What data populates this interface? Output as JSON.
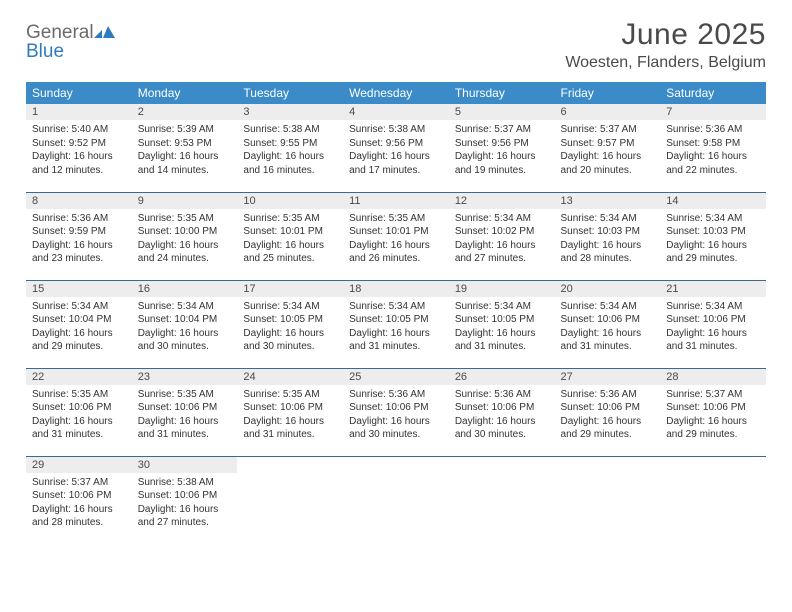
{
  "brand": {
    "general": "General",
    "blue": "Blue"
  },
  "title": "June 2025",
  "location": "Woesten, Flanders, Belgium",
  "colors": {
    "header_bg": "#3b8bc8",
    "header_text": "#ffffff",
    "daynum_bg": "#ededed",
    "cell_border": "#3b6a8f",
    "title_text": "#4a4a4a",
    "body_text": "#333333",
    "logo_gray": "#6b6b6b",
    "logo_blue": "#2f7bbf"
  },
  "weekdays": [
    "Sunday",
    "Monday",
    "Tuesday",
    "Wednesday",
    "Thursday",
    "Friday",
    "Saturday"
  ],
  "days": [
    {
      "n": "1",
      "sunrise": "5:40 AM",
      "sunset": "9:52 PM",
      "daylight": "16 hours and 12 minutes."
    },
    {
      "n": "2",
      "sunrise": "5:39 AM",
      "sunset": "9:53 PM",
      "daylight": "16 hours and 14 minutes."
    },
    {
      "n": "3",
      "sunrise": "5:38 AM",
      "sunset": "9:55 PM",
      "daylight": "16 hours and 16 minutes."
    },
    {
      "n": "4",
      "sunrise": "5:38 AM",
      "sunset": "9:56 PM",
      "daylight": "16 hours and 17 minutes."
    },
    {
      "n": "5",
      "sunrise": "5:37 AM",
      "sunset": "9:56 PM",
      "daylight": "16 hours and 19 minutes."
    },
    {
      "n": "6",
      "sunrise": "5:37 AM",
      "sunset": "9:57 PM",
      "daylight": "16 hours and 20 minutes."
    },
    {
      "n": "7",
      "sunrise": "5:36 AM",
      "sunset": "9:58 PM",
      "daylight": "16 hours and 22 minutes."
    },
    {
      "n": "8",
      "sunrise": "5:36 AM",
      "sunset": "9:59 PM",
      "daylight": "16 hours and 23 minutes."
    },
    {
      "n": "9",
      "sunrise": "5:35 AM",
      "sunset": "10:00 PM",
      "daylight": "16 hours and 24 minutes."
    },
    {
      "n": "10",
      "sunrise": "5:35 AM",
      "sunset": "10:01 PM",
      "daylight": "16 hours and 25 minutes."
    },
    {
      "n": "11",
      "sunrise": "5:35 AM",
      "sunset": "10:01 PM",
      "daylight": "16 hours and 26 minutes."
    },
    {
      "n": "12",
      "sunrise": "5:34 AM",
      "sunset": "10:02 PM",
      "daylight": "16 hours and 27 minutes."
    },
    {
      "n": "13",
      "sunrise": "5:34 AM",
      "sunset": "10:03 PM",
      "daylight": "16 hours and 28 minutes."
    },
    {
      "n": "14",
      "sunrise": "5:34 AM",
      "sunset": "10:03 PM",
      "daylight": "16 hours and 29 minutes."
    },
    {
      "n": "15",
      "sunrise": "5:34 AM",
      "sunset": "10:04 PM",
      "daylight": "16 hours and 29 minutes."
    },
    {
      "n": "16",
      "sunrise": "5:34 AM",
      "sunset": "10:04 PM",
      "daylight": "16 hours and 30 minutes."
    },
    {
      "n": "17",
      "sunrise": "5:34 AM",
      "sunset": "10:05 PM",
      "daylight": "16 hours and 30 minutes."
    },
    {
      "n": "18",
      "sunrise": "5:34 AM",
      "sunset": "10:05 PM",
      "daylight": "16 hours and 31 minutes."
    },
    {
      "n": "19",
      "sunrise": "5:34 AM",
      "sunset": "10:05 PM",
      "daylight": "16 hours and 31 minutes."
    },
    {
      "n": "20",
      "sunrise": "5:34 AM",
      "sunset": "10:06 PM",
      "daylight": "16 hours and 31 minutes."
    },
    {
      "n": "21",
      "sunrise": "5:34 AM",
      "sunset": "10:06 PM",
      "daylight": "16 hours and 31 minutes."
    },
    {
      "n": "22",
      "sunrise": "5:35 AM",
      "sunset": "10:06 PM",
      "daylight": "16 hours and 31 minutes."
    },
    {
      "n": "23",
      "sunrise": "5:35 AM",
      "sunset": "10:06 PM",
      "daylight": "16 hours and 31 minutes."
    },
    {
      "n": "24",
      "sunrise": "5:35 AM",
      "sunset": "10:06 PM",
      "daylight": "16 hours and 31 minutes."
    },
    {
      "n": "25",
      "sunrise": "5:36 AM",
      "sunset": "10:06 PM",
      "daylight": "16 hours and 30 minutes."
    },
    {
      "n": "26",
      "sunrise": "5:36 AM",
      "sunset": "10:06 PM",
      "daylight": "16 hours and 30 minutes."
    },
    {
      "n": "27",
      "sunrise": "5:36 AM",
      "sunset": "10:06 PM",
      "daylight": "16 hours and 29 minutes."
    },
    {
      "n": "28",
      "sunrise": "5:37 AM",
      "sunset": "10:06 PM",
      "daylight": "16 hours and 29 minutes."
    },
    {
      "n": "29",
      "sunrise": "5:37 AM",
      "sunset": "10:06 PM",
      "daylight": "16 hours and 28 minutes."
    },
    {
      "n": "30",
      "sunrise": "5:38 AM",
      "sunset": "10:06 PM",
      "daylight": "16 hours and 27 minutes."
    }
  ],
  "labels": {
    "sunrise": "Sunrise:",
    "sunset": "Sunset:",
    "daylight": "Daylight:"
  }
}
